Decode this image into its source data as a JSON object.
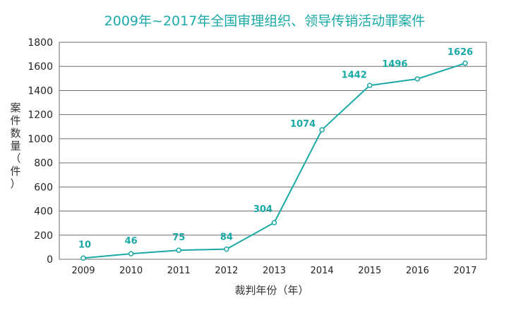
{
  "chart_data": {
    "type": "line",
    "title": "2009年~2017年全国审理组织、领导传销活动罪案件",
    "xlabel": "裁判年份（年）",
    "ylabel_chars": [
      "案",
      "件",
      "数",
      "量",
      "（",
      "件",
      "）"
    ],
    "categories": [
      "2009",
      "2010",
      "2011",
      "2012",
      "2013",
      "2014",
      "2015",
      "2016",
      "2017"
    ],
    "values": [
      10,
      46,
      75,
      84,
      304,
      1074,
      1442,
      1496,
      1626
    ],
    "data_labels": [
      "10",
      "46",
      "75",
      "84",
      "304",
      "1074",
      "1442",
      "1496",
      "1626"
    ],
    "yticks": [
      "0",
      "200",
      "400",
      "600",
      "800",
      "1000",
      "1200",
      "1400",
      "1600",
      "1800"
    ],
    "ylim": [
      0,
      1800
    ],
    "grid": true,
    "colors": {
      "series": "#1aa9a6",
      "title": "#1aa9a6",
      "grid": "#6e6e6e"
    }
  }
}
